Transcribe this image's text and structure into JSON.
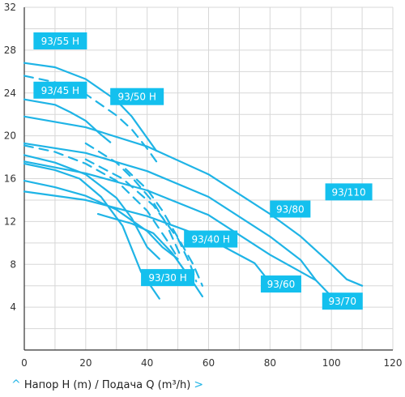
{
  "chart_data": {
    "type": "line",
    "title": "",
    "xlabel": "Напор H (m) / Подача Q (m³/h)",
    "ylabel": "",
    "xlim": [
      0,
      120
    ],
    "ylim": [
      0,
      32
    ],
    "xticks": [
      "0",
      "20",
      "40",
      "60",
      "80",
      "100",
      "120"
    ],
    "yticks": [
      "4",
      "8",
      "12",
      "16",
      "20",
      "24",
      "28",
      "32"
    ],
    "grid": true,
    "accent_color": "#1fb4e6",
    "label_bg_color": "#14c0ee",
    "grid_color": "#d7d7d7",
    "axis_color": "#333333",
    "series": [
      {
        "name": "93/55 H",
        "x": [
          0,
          10,
          20,
          30,
          35,
          40,
          43
        ],
        "y": [
          26.8,
          26.4,
          25.3,
          23.3,
          21.8,
          19.8,
          18.6
        ],
        "dashed": false
      },
      {
        "name": "93/50 H",
        "x": [
          0,
          10,
          20,
          30,
          35,
          40,
          43
        ],
        "y": [
          25.6,
          25.0,
          23.9,
          21.9,
          20.6,
          18.8,
          17.6
        ],
        "dashed": true
      },
      {
        "name": "93/45 H",
        "x": [
          0,
          10,
          15,
          20,
          25,
          28
        ],
        "y": [
          23.4,
          22.9,
          22.2,
          21.4,
          20.1,
          19.4
        ],
        "dashed": false
      },
      {
        "name": "93/110",
        "x": [
          0,
          20,
          40,
          60,
          80,
          90,
          100,
          105,
          110
        ],
        "y": [
          21.8,
          20.8,
          19.0,
          16.4,
          12.7,
          10.6,
          8.0,
          6.6,
          6.0
        ],
        "dashed": false
      },
      {
        "name": "93/80",
        "x": [
          0,
          20,
          40,
          60,
          80,
          90,
          95
        ],
        "y": [
          19.3,
          18.4,
          16.7,
          14.3,
          10.6,
          8.4,
          6.5
        ],
        "dashed": false
      },
      {
        "name": "93/70",
        "x": [
          0,
          20,
          40,
          60,
          80,
          95,
          100
        ],
        "y": [
          17.6,
          16.5,
          14.9,
          12.6,
          8.9,
          6.5,
          5.0
        ],
        "dashed": false
      },
      {
        "name": "93/60",
        "x": [
          0,
          20,
          40,
          60,
          75,
          80
        ],
        "y": [
          14.8,
          14.0,
          12.5,
          10.4,
          8.1,
          6.3
        ],
        "dashed": false
      },
      {
        "name": "93/40 H",
        "x": [
          0,
          10,
          20,
          30,
          40,
          47,
          50
        ],
        "y": [
          19.1,
          18.5,
          17.4,
          15.8,
          13.0,
          10.0,
          8.6
        ],
        "dashed": true
      },
      {
        "name": "93/30 H",
        "x": [
          0,
          10,
          20,
          30,
          40,
          45,
          50
        ],
        "y": [
          15.8,
          15.2,
          14.4,
          13.1,
          11.1,
          9.6,
          8.5
        ],
        "dashed": false
      },
      {
        "name": "",
        "x": [
          0,
          10,
          20,
          30,
          35,
          40,
          44
        ],
        "y": [
          18.2,
          17.5,
          16.4,
          14.2,
          12.3,
          9.6,
          8.5
        ],
        "dashed": false
      },
      {
        "name": "",
        "x": [
          0,
          10,
          18,
          25,
          32,
          38,
          44
        ],
        "y": [
          17.4,
          16.8,
          16.0,
          14.3,
          11.6,
          7.3,
          4.8
        ],
        "dashed": false
      },
      {
        "name": "",
        "x": [
          20,
          32,
          42,
          50,
          54,
          56
        ],
        "y": [
          17.8,
          16.0,
          13.5,
          10.4,
          8.0,
          6.4
        ],
        "dashed": true
      },
      {
        "name": "",
        "x": [
          33,
          40,
          45,
          50,
          55,
          58
        ],
        "y": [
          16.9,
          15.0,
          13.0,
          10.5,
          8.0,
          6.0
        ],
        "dashed": true
      },
      {
        "name": "",
        "x": [
          24,
          30,
          35,
          42,
          48,
          55,
          58
        ],
        "y": [
          12.7,
          12.2,
          11.8,
          10.9,
          9.1,
          6.3,
          5.0
        ],
        "dashed": false
      },
      {
        "name": "",
        "x": [
          20,
          30,
          36,
          42,
          46,
          49,
          51
        ],
        "y": [
          19.3,
          17.5,
          15.8,
          13.8,
          11.9,
          10.0,
          8.7
        ],
        "dashed": true
      }
    ],
    "labels": [
      "93/55 H",
      "93/45 H",
      "93/50 H",
      "93/110",
      "93/80",
      "93/40 H",
      "93/30 H",
      "93/60",
      "93/70"
    ]
  }
}
